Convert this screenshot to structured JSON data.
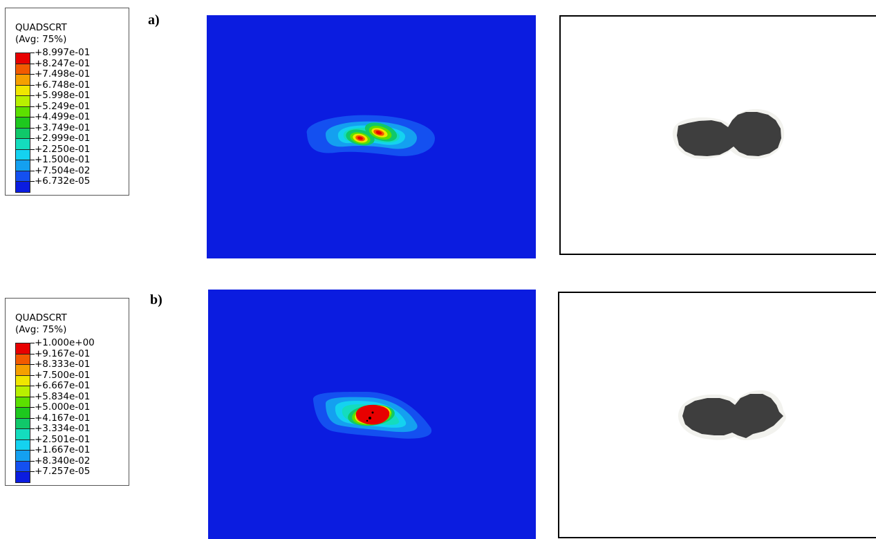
{
  "panels": [
    {
      "label": "a)",
      "legend": {
        "title": "QUADSCRT",
        "subtitle": "(Avg: 75%)",
        "values": [
          "+8.997e-01",
          "+8.247e-01",
          "+7.498e-01",
          "+6.748e-01",
          "+5.998e-01",
          "+5.249e-01",
          "+4.499e-01",
          "+3.749e-01",
          "+2.999e-01",
          "+2.250e-01",
          "+1.500e-01",
          "+7.504e-02",
          "+6.732e-05"
        ]
      }
    },
    {
      "label": "b)",
      "legend": {
        "title": "QUADSCRT",
        "subtitle": "(Avg: 75%)",
        "values": [
          "+1.000e+00",
          "+9.167e-01",
          "+8.333e-01",
          "+7.500e-01",
          "+6.667e-01",
          "+5.834e-01",
          "+5.000e-01",
          "+4.167e-01",
          "+3.334e-01",
          "+2.501e-01",
          "+1.667e-01",
          "+8.340e-02",
          "+7.257e-05"
        ]
      }
    }
  ],
  "colormap": [
    "#e80000",
    "#f25a00",
    "#f5a000",
    "#f0e600",
    "#b8f000",
    "#5ce000",
    "#1ec81e",
    "#10c86a",
    "#14dcbe",
    "#14d2f0",
    "#14a0f0",
    "#1450f0",
    "#0b1ce0"
  ],
  "field_background": "#0b1ce0",
  "damage_color": "#3e3e3e"
}
